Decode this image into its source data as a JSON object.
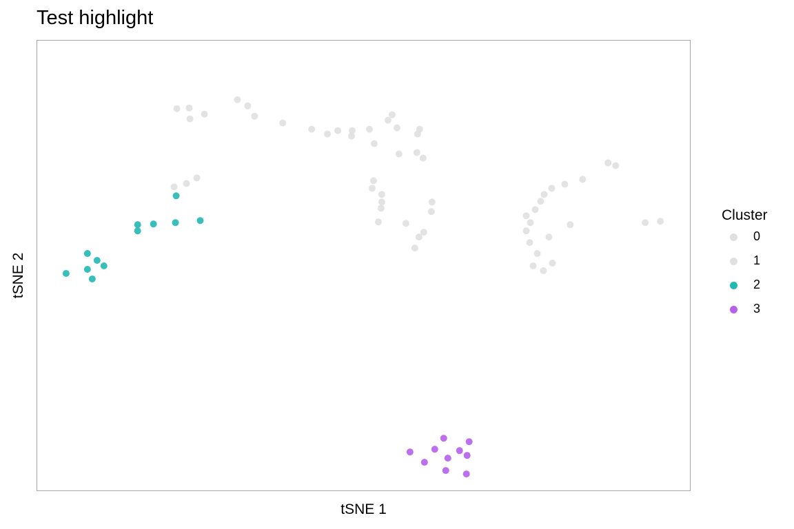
{
  "chart_data": {
    "type": "scatter",
    "title": "Test highlight",
    "xlabel": "tSNE 1",
    "ylabel": "tSNE 2",
    "xlim": [
      0,
      949
    ],
    "ylim": [
      0,
      655
    ],
    "grid": false,
    "legend": {
      "title": "Cluster",
      "placement": "right"
    },
    "series": [
      {
        "name": "0",
        "color": "#e0e0e0",
        "points": [
          [
            203,
            556
          ],
          [
            221,
            557
          ],
          [
            222,
            541
          ],
          [
            243,
            548
          ],
          [
            291,
            569
          ],
          [
            306,
            560
          ],
          [
            316,
            545
          ],
          [
            357,
            535
          ],
          [
            399,
            526
          ],
          [
            458,
            524
          ],
          [
            483,
            526
          ],
          [
            523,
            528
          ],
          [
            556,
            526
          ],
          [
            553,
            519
          ],
          [
            516,
            547
          ],
          [
            510,
            539
          ],
          [
            437,
            524
          ],
          [
            422,
            519
          ],
          [
            457,
            516
          ],
          [
            490,
            505
          ],
          [
            526,
            490
          ],
          [
            552,
            492
          ],
          [
            561,
            484
          ],
          [
            489,
            451
          ],
          [
            487,
            440
          ],
          [
            501,
            431
          ],
          [
            500,
            411
          ],
          [
            501,
            420
          ],
          [
            574,
            420
          ],
          [
            573,
            406
          ],
          [
            496,
            391
          ],
          [
            536,
            389
          ],
          [
            562,
            376
          ],
          [
            555,
            369
          ],
          [
            549,
            353
          ]
        ]
      },
      {
        "name": "1",
        "color": "#e0e0e0",
        "points": [
          [
            199,
            442
          ],
          [
            217,
            447
          ],
          [
            232,
            455
          ],
          [
            830,
            477
          ],
          [
            841,
            473
          ],
          [
            793,
            453
          ],
          [
            767,
            446
          ],
          [
            748,
            440
          ],
          [
            737,
            431
          ],
          [
            732,
            421
          ],
          [
            724,
            409
          ],
          [
            711,
            400
          ],
          [
            717,
            390
          ],
          [
            775,
            387
          ],
          [
            711,
            378
          ],
          [
            744,
            369
          ],
          [
            716,
            361
          ],
          [
            727,
            345
          ],
          [
            749,
            331
          ],
          [
            721,
            327
          ],
          [
            736,
            320
          ],
          [
            884,
            390
          ],
          [
            906,
            392
          ]
        ]
      },
      {
        "name": "2",
        "color": "#22b8b4",
        "points": [
          [
            202,
            429
          ],
          [
            146,
            387
          ],
          [
            169,
            388
          ],
          [
            237,
            393
          ],
          [
            201,
            390
          ],
          [
            146,
            378
          ],
          [
            73,
            345
          ],
          [
            87,
            335
          ],
          [
            97,
            327
          ],
          [
            73,
            322
          ],
          [
            42,
            316
          ],
          [
            80,
            308
          ]
        ]
      },
      {
        "name": "3",
        "color": "#b660ec",
        "points": [
          [
            591,
            76
          ],
          [
            628,
            71
          ],
          [
            578,
            60
          ],
          [
            614,
            58
          ],
          [
            542,
            56
          ],
          [
            597,
            47
          ],
          [
            625,
            51
          ],
          [
            563,
            41
          ],
          [
            594,
            29
          ],
          [
            624,
            24
          ]
        ]
      }
    ]
  }
}
